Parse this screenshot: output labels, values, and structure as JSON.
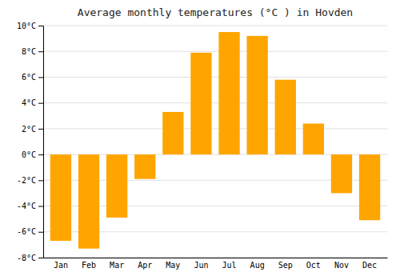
{
  "chart_data": {
    "type": "bar",
    "title": "Average monthly temperatures (°C ) in Hovden",
    "categories": [
      "Jan",
      "Feb",
      "Mar",
      "Apr",
      "May",
      "Jun",
      "Jul",
      "Aug",
      "Sep",
      "Oct",
      "Nov",
      "Dec"
    ],
    "values": [
      -6.7,
      -7.3,
      -4.9,
      -1.9,
      3.3,
      7.9,
      9.5,
      9.2,
      5.8,
      2.4,
      -3.0,
      -5.1
    ],
    "color": "#FFA500",
    "ylim": [
      -8,
      10
    ],
    "yticks": [
      {
        "value": -8,
        "label": "-8°C"
      },
      {
        "value": -6,
        "label": "-6°C"
      },
      {
        "value": -4,
        "label": "-4°C"
      },
      {
        "value": -2,
        "label": "-2°C"
      },
      {
        "value": 0,
        "label": "0°C"
      },
      {
        "value": 2,
        "label": "2°C"
      },
      {
        "value": 4,
        "label": "4°C"
      },
      {
        "value": 6,
        "label": "6°C"
      },
      {
        "value": 8,
        "label": "8°C"
      },
      {
        "value": 10,
        "label": "10°C"
      }
    ],
    "grid": true
  }
}
